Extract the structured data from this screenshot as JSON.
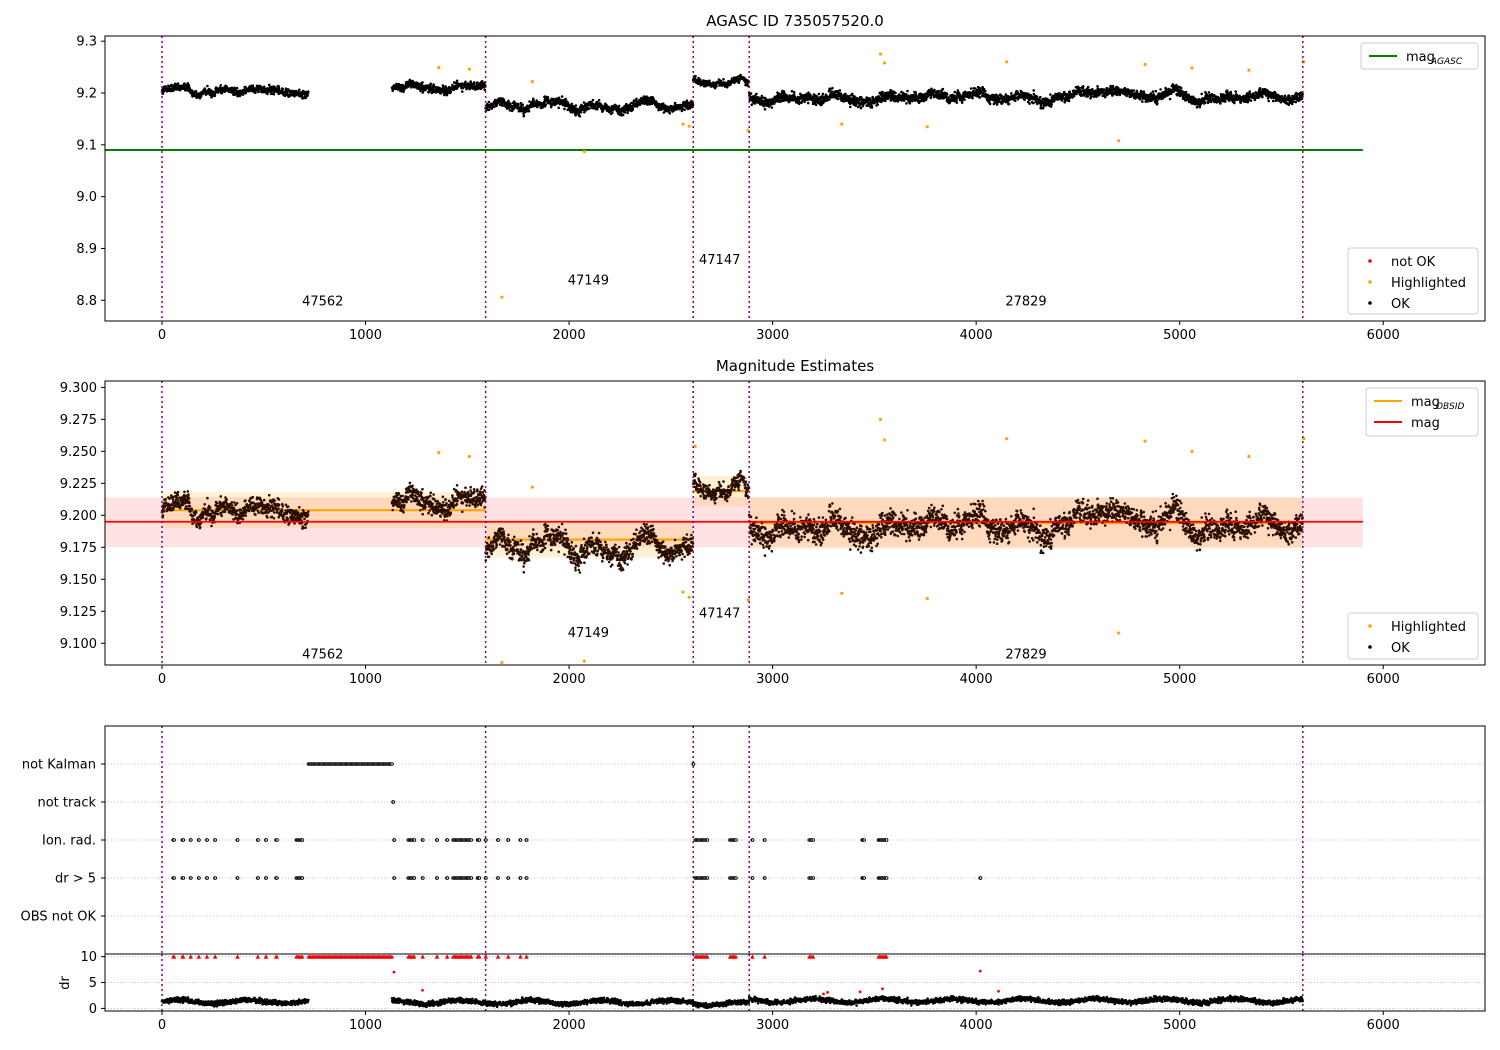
{
  "figure": {
    "title": "AGASC ID 735057520.0"
  },
  "chart_data": [
    {
      "type": "scatter",
      "title": "AGASC ID 735057520.0",
      "xlim": [
        -280,
        6500
      ],
      "ylim": [
        8.76,
        9.31
      ],
      "x_ticks": [
        0,
        1000,
        2000,
        3000,
        4000,
        5000,
        6000
      ],
      "x_tick_labels": [
        "0",
        "1000",
        "2000",
        "3000",
        "4000",
        "5000",
        "6000"
      ],
      "y_ticks": [
        8.8,
        8.9,
        9.0,
        9.1,
        9.2,
        9.3
      ],
      "y_tick_labels": [
        "8.8",
        "8.9",
        "9.0",
        "9.1",
        "9.2",
        "9.3"
      ],
      "obs_boundaries": [
        0,
        1590,
        2610,
        2885,
        5605
      ],
      "obs_labels": [
        {
          "text": "47562",
          "x": 790,
          "y": 8.79
        },
        {
          "text": "47149",
          "x": 2095,
          "y": 8.83
        },
        {
          "text": "47147",
          "x": 2740,
          "y": 8.87
        },
        {
          "text": "27829",
          "x": 4245,
          "y": 8.79
        }
      ],
      "lines": [
        {
          "name": "mag_AGASC",
          "legend_main": "mag",
          "legend_sub": "AGASC",
          "x": [
            -280,
            5900
          ],
          "y": [
            9.09,
            9.09
          ],
          "color": "#008000"
        }
      ],
      "segments": [
        {
          "x0": 0,
          "x1": 720,
          "mean": 9.203,
          "amp": 0.012
        },
        {
          "x0": 1130,
          "x1": 1590,
          "mean": 9.212,
          "amp": 0.012
        },
        {
          "x0": 1590,
          "x1": 2610,
          "mean": 9.178,
          "amp": 0.014
        },
        {
          "x0": 2610,
          "x1": 2885,
          "mean": 9.222,
          "amp": 0.01
        },
        {
          "x0": 2885,
          "x1": 5605,
          "mean": 9.192,
          "amp": 0.016
        }
      ],
      "highlighted_points": [
        {
          "x": 1670,
          "y": 8.806
        },
        {
          "x": 2075,
          "y": 9.087
        },
        {
          "x": 4700,
          "y": 9.108
        },
        {
          "x": 3530,
          "y": 9.275
        },
        {
          "x": 3550,
          "y": 9.258
        },
        {
          "x": 4150,
          "y": 9.26
        },
        {
          "x": 4830,
          "y": 9.255
        },
        {
          "x": 5060,
          "y": 9.248
        },
        {
          "x": 5340,
          "y": 9.244
        },
        {
          "x": 1360,
          "y": 9.249
        },
        {
          "x": 1510,
          "y": 9.246
        },
        {
          "x": 1820,
          "y": 9.222
        },
        {
          "x": 2560,
          "y": 9.14
        },
        {
          "x": 2590,
          "y": 9.136
        },
        {
          "x": 2880,
          "y": 9.128
        },
        {
          "x": 3340,
          "y": 9.14
        },
        {
          "x": 3760,
          "y": 9.135
        },
        {
          "x": 5610,
          "y": 9.26
        }
      ],
      "legend": {
        "upper": [
          {
            "label": "mag",
            "sub": "AGASC",
            "color": "#008000"
          }
        ],
        "lower": [
          {
            "label": "not OK",
            "color": "#ff0000"
          },
          {
            "label": "Highlighted",
            "color": "#ffa500"
          },
          {
            "label": "OK",
            "color": "#000000"
          }
        ]
      }
    },
    {
      "type": "scatter",
      "title": "Magnitude Estimates",
      "xlim": [
        -280,
        6500
      ],
      "ylim": [
        9.083,
        9.305
      ],
      "x_ticks": [
        0,
        1000,
        2000,
        3000,
        4000,
        5000,
        6000
      ],
      "x_tick_labels": [
        "0",
        "1000",
        "2000",
        "3000",
        "4000",
        "5000",
        "6000"
      ],
      "y_ticks": [
        9.1,
        9.125,
        9.15,
        9.175,
        9.2,
        9.225,
        9.25,
        9.275,
        9.3
      ],
      "y_tick_labels": [
        "9.100",
        "9.125",
        "9.150",
        "9.175",
        "9.200",
        "9.225",
        "9.250",
        "9.275",
        "9.300"
      ],
      "obs_boundaries": [
        0,
        1590,
        2610,
        2885,
        5605
      ],
      "obs_labels": [
        {
          "text": "47562",
          "x": 790,
          "y": 9.088
        },
        {
          "text": "47149",
          "x": 2095,
          "y": 9.105
        },
        {
          "text": "47147",
          "x": 2740,
          "y": 9.12
        },
        {
          "text": "27829",
          "x": 4245,
          "y": 9.088
        }
      ],
      "mag_band": {
        "x0": -280,
        "x1": 5900,
        "mean": 9.195,
        "lo": 9.175,
        "hi": 9.214
      },
      "obsid_means": [
        {
          "x0": 0,
          "x1": 1590,
          "mean": 9.204,
          "lo": 9.19,
          "hi": 9.218
        },
        {
          "x0": 1590,
          "x1": 2610,
          "mean": 9.181,
          "lo": 9.167,
          "hi": 9.195
        },
        {
          "x0": 2610,
          "x1": 2885,
          "mean": 9.219,
          "lo": 9.207,
          "hi": 9.231
        },
        {
          "x0": 2885,
          "x1": 5605,
          "mean": 9.194,
          "lo": 9.174,
          "hi": 9.214
        }
      ],
      "segments": [
        {
          "x0": 0,
          "x1": 720,
          "mean": 9.203,
          "amp": 0.012
        },
        {
          "x0": 1130,
          "x1": 1590,
          "mean": 9.212,
          "amp": 0.012
        },
        {
          "x0": 1590,
          "x1": 2610,
          "mean": 9.178,
          "amp": 0.014
        },
        {
          "x0": 2610,
          "x1": 2885,
          "mean": 9.222,
          "amp": 0.01
        },
        {
          "x0": 2885,
          "x1": 5605,
          "mean": 9.192,
          "amp": 0.016
        }
      ],
      "highlighted_points": [
        {
          "x": 1670,
          "y": 9.085
        },
        {
          "x": 2075,
          "y": 9.086
        },
        {
          "x": 4700,
          "y": 9.108
        },
        {
          "x": 3530,
          "y": 9.275
        },
        {
          "x": 3550,
          "y": 9.259
        },
        {
          "x": 4150,
          "y": 9.26
        },
        {
          "x": 4830,
          "y": 9.258
        },
        {
          "x": 5060,
          "y": 9.25
        },
        {
          "x": 5340,
          "y": 9.246
        },
        {
          "x": 1360,
          "y": 9.249
        },
        {
          "x": 1510,
          "y": 9.246
        },
        {
          "x": 1820,
          "y": 9.222
        },
        {
          "x": 2560,
          "y": 9.14
        },
        {
          "x": 2590,
          "y": 9.136
        },
        {
          "x": 2880,
          "y": 9.134
        },
        {
          "x": 3340,
          "y": 9.139
        },
        {
          "x": 3760,
          "y": 9.135
        },
        {
          "x": 5610,
          "y": 9.26
        },
        {
          "x": 2620,
          "y": 9.254
        }
      ],
      "legend": {
        "upper": [
          {
            "label": "mag",
            "sub": "OBSID",
            "color": "#ffa500"
          },
          {
            "label": "mag",
            "sub": "",
            "color": "#ff0000"
          }
        ],
        "lower": [
          {
            "label": "Highlighted",
            "color": "#ffa500"
          },
          {
            "label": "OK",
            "color": "#000000"
          }
        ]
      }
    },
    {
      "type": "scatter",
      "title": "",
      "xlim": [
        -280,
        6500
      ],
      "categories": [
        "not Kalman",
        "not track",
        "Ion. rad.",
        "dr > 5",
        "OBS not OK"
      ],
      "obs_boundaries": [
        0,
        1590,
        2610,
        2885,
        5605
      ],
      "flags": {
        "not Kalman": [
          [
            720,
            1130
          ],
          [
            2610,
            2612
          ]
        ],
        "not track": [
          [
            1135,
            1137
          ]
        ],
        "Ion. rad.": [
          [
            55,
            60
          ],
          [
            100,
            105
          ],
          [
            140,
            142
          ],
          [
            180,
            182
          ],
          [
            220,
            222
          ],
          [
            260,
            262
          ],
          [
            370,
            372
          ],
          [
            470,
            472
          ],
          [
            510,
            512
          ],
          [
            560,
            565
          ],
          [
            660,
            690
          ],
          [
            1140,
            1142
          ],
          [
            1210,
            1240
          ],
          [
            1280,
            1282
          ],
          [
            1350,
            1352
          ],
          [
            1400,
            1402
          ],
          [
            1430,
            1520
          ],
          [
            1550,
            1560
          ],
          [
            1590,
            1592
          ],
          [
            1650,
            1652
          ],
          [
            1700,
            1702
          ],
          [
            1760,
            1762
          ],
          [
            1790,
            1792
          ],
          [
            2620,
            2680
          ],
          [
            2790,
            2820
          ],
          [
            2900,
            2902
          ],
          [
            2960,
            2962
          ],
          [
            3180,
            3200
          ],
          [
            3440,
            3450
          ],
          [
            3520,
            3560
          ]
        ],
        "dr > 5": [
          [
            55,
            60
          ],
          [
            100,
            105
          ],
          [
            140,
            142
          ],
          [
            180,
            182
          ],
          [
            220,
            222
          ],
          [
            260,
            262
          ],
          [
            370,
            372
          ],
          [
            470,
            472
          ],
          [
            510,
            512
          ],
          [
            560,
            565
          ],
          [
            660,
            690
          ],
          [
            1140,
            1142
          ],
          [
            1210,
            1240
          ],
          [
            1280,
            1282
          ],
          [
            1350,
            1352
          ],
          [
            1400,
            1402
          ],
          [
            1430,
            1520
          ],
          [
            1550,
            1560
          ],
          [
            1590,
            1592
          ],
          [
            1650,
            1652
          ],
          [
            1700,
            1702
          ],
          [
            1760,
            1762
          ],
          [
            1790,
            1792
          ],
          [
            2620,
            2680
          ],
          [
            2790,
            2820
          ],
          [
            2900,
            2902
          ],
          [
            2960,
            2962
          ],
          [
            3180,
            3200
          ],
          [
            3440,
            3450
          ],
          [
            3520,
            3560
          ],
          [
            4020,
            4022
          ]
        ],
        "OBS not OK": []
      }
    },
    {
      "type": "scatter",
      "title": "",
      "xlim": [
        -280,
        6500
      ],
      "ylim": [
        -0.5,
        10.5
      ],
      "x_ticks": [
        0,
        1000,
        2000,
        3000,
        4000,
        5000,
        6000
      ],
      "x_tick_labels": [
        "0",
        "1000",
        "2000",
        "3000",
        "4000",
        "5000",
        "6000"
      ],
      "y_ticks": [
        0,
        5,
        10
      ],
      "y_tick_labels": [
        "0",
        "5",
        "10"
      ],
      "ylabel": "dr",
      "obs_boundaries": [
        0,
        1590,
        2610,
        2885,
        5605
      ],
      "dr_segments": [
        {
          "x0": 0,
          "x1": 720,
          "mean": 1.3
        },
        {
          "x0": 1130,
          "x1": 2610,
          "mean": 1.2
        },
        {
          "x0": 2610,
          "x1": 2885,
          "mean": 0.9
        },
        {
          "x0": 2885,
          "x1": 5605,
          "mean": 1.5
        }
      ],
      "clipped_ranges": [
        [
          55,
          60
        ],
        [
          100,
          105
        ],
        [
          140,
          142
        ],
        [
          180,
          182
        ],
        [
          220,
          222
        ],
        [
          260,
          262
        ],
        [
          370,
          372
        ],
        [
          470,
          472
        ],
        [
          510,
          512
        ],
        [
          560,
          565
        ],
        [
          660,
          690
        ],
        [
          720,
          1130
        ],
        [
          1210,
          1240
        ],
        [
          1280,
          1282
        ],
        [
          1350,
          1352
        ],
        [
          1400,
          1402
        ],
        [
          1430,
          1520
        ],
        [
          1550,
          1560
        ],
        [
          1590,
          1592
        ],
        [
          1650,
          1652
        ],
        [
          1700,
          1702
        ],
        [
          1760,
          1762
        ],
        [
          1790,
          1792
        ],
        [
          2620,
          2680
        ],
        [
          2790,
          2820
        ],
        [
          2900,
          2902
        ],
        [
          2960,
          2962
        ],
        [
          3180,
          3200
        ],
        [
          3520,
          3560
        ]
      ],
      "red_points": [
        {
          "x": 1140,
          "y": 7.0
        },
        {
          "x": 1280,
          "y": 3.5
        },
        {
          "x": 3250,
          "y": 2.8
        },
        {
          "x": 3270,
          "y": 3.1
        },
        {
          "x": 3430,
          "y": 3.2
        },
        {
          "x": 3540,
          "y": 3.8
        },
        {
          "x": 4020,
          "y": 7.2
        },
        {
          "x": 4110,
          "y": 3.3
        }
      ]
    }
  ]
}
